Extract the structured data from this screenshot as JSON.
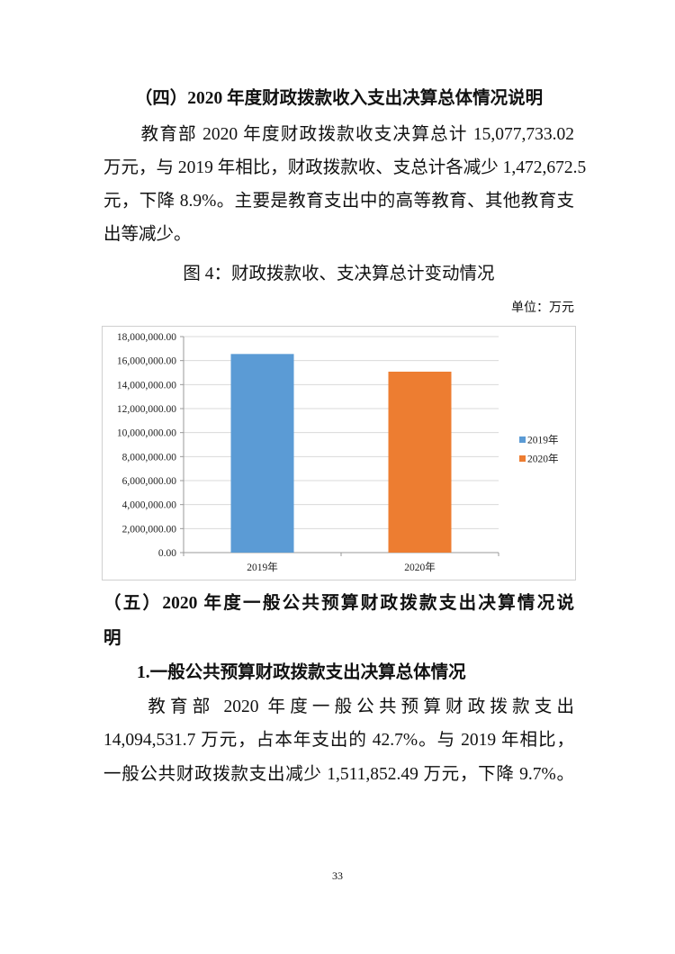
{
  "section4": {
    "heading": "（四）2020 年度财政拨款收入支出决算总体情况说明",
    "paragraph_lines": [
      "　　教育部 2020 年度财政拨款收支决算总计 15,077,733.02",
      "万元，与 2019 年相比，财政拨款收、支总计各减少 1,472,672.5",
      "元，下降 8.9%。主要是教育支出中的高等教育、其他教育支",
      "出等减少。"
    ],
    "figure_caption": "图 4：财政拨款收、支决算总计变动情况",
    "unit_label": "单位：万元"
  },
  "chart_data": {
    "type": "bar",
    "title": "",
    "categories": [
      "2019年",
      "2020年"
    ],
    "series": [
      {
        "name": "2019年",
        "category": "2019年",
        "value": 16550405.52,
        "color": "#5B9BD5"
      },
      {
        "name": "2020年",
        "category": "2020年",
        "value": 15077733.02,
        "color": "#ED7D31"
      }
    ],
    "ylim": [
      0,
      18000000
    ],
    "yticks": [
      "0.00",
      "2,000,000.00",
      "4,000,000.00",
      "6,000,000.00",
      "8,000,000.00",
      "10,000,000.00",
      "12,000,000.00",
      "14,000,000.00",
      "16,000,000.00",
      "18,000,000.00"
    ],
    "grid": true,
    "legend_position": "right"
  },
  "section5": {
    "heading_line1": "（五）2020 年度一般公共预算财政拨款支出决算情况说",
    "heading_line2": "明",
    "subheading": "1.一般公共预算财政拨款支出决算总体情况",
    "paragraph_lines": [
      "　　教育部 2020 年度一般公共预算财政拨款支出",
      "14,094,531.7 万元，占本年支出的 42.7%。与 2019 年相比，",
      "一般公共财政拨款支出减少 1,511,852.49 万元，下降 9.7%。"
    ]
  },
  "page_number": "33"
}
